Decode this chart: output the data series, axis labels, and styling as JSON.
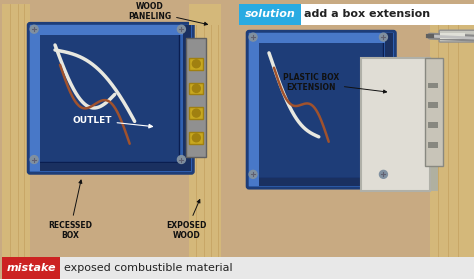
{
  "figsize": [
    4.74,
    2.79
  ],
  "dpi": 100,
  "bg_color": "#c8aa82",
  "solution_label_bg": "#29abe2",
  "solution_label_text": "solution",
  "solution_desc_bg": "#ffffff",
  "solution_desc_text": "add a box extension",
  "mistake_label_bg": "#cc2222",
  "mistake_label_text": "mistake",
  "mistake_desc_bg": "#e8e8e8",
  "mistake_desc_text": "exposed combustible material",
  "wood_color": "#d4b87a",
  "wood_grain": "#c4a060",
  "box_blue": "#3060b0",
  "box_blue_light": "#4878c8",
  "box_blue_dark": "#1e3d78",
  "wire_white": "#e8e8e0",
  "wire_copper": "#a0522d",
  "metal_color": "#a0a090",
  "plastic_ext_color": "#e0ddd5",
  "outlet_color": "#c8c4b8"
}
